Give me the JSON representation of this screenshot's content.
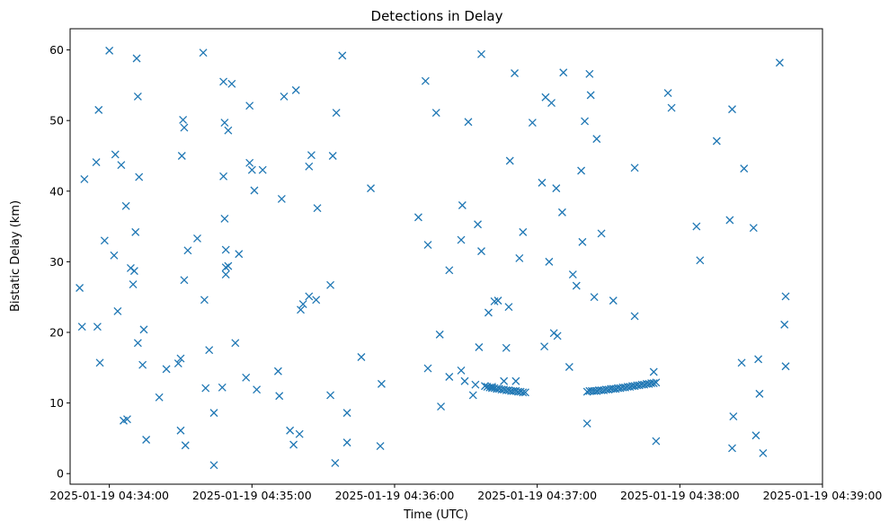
{
  "chart_data": {
    "type": "scatter",
    "title": "Detections in Delay",
    "xlabel": "Time (UTC)",
    "ylabel": "Bistatic Delay (km)",
    "marker": "x",
    "color": "#1f77b4",
    "x_unit": "seconds after 2025-01-19 04:34:00",
    "xlim": [
      -16.5,
      300
    ],
    "ylim": [
      -1.5,
      63
    ],
    "x_ticks": [
      {
        "value": 0,
        "label": "2025-01-19 04:34:00"
      },
      {
        "value": 60,
        "label": "2025-01-19 04:35:00"
      },
      {
        "value": 120,
        "label": "2025-01-19 04:36:00"
      },
      {
        "value": 180,
        "label": "2025-01-19 04:37:00"
      },
      {
        "value": 240,
        "label": "2025-01-19 04:38:00"
      },
      {
        "value": 300,
        "label": "2025-01-19 04:39:00"
      }
    ],
    "y_ticks": [
      {
        "value": 0,
        "label": "0"
      },
      {
        "value": 10,
        "label": "10"
      },
      {
        "value": 20,
        "label": "20"
      },
      {
        "value": 30,
        "label": "30"
      },
      {
        "value": 40,
        "label": "40"
      },
      {
        "value": 50,
        "label": "50"
      },
      {
        "value": 60,
        "label": "60"
      }
    ],
    "points": [
      [
        -12.5,
        26.3
      ],
      [
        -11.5,
        20.8
      ],
      [
        -10.5,
        41.7
      ],
      [
        -5.5,
        44.1
      ],
      [
        -5,
        20.8
      ],
      [
        -4.5,
        51.5
      ],
      [
        -4,
        15.7
      ],
      [
        -2,
        33
      ],
      [
        0,
        59.9
      ],
      [
        2,
        30.9
      ],
      [
        2.5,
        45.2
      ],
      [
        3.5,
        23
      ],
      [
        5,
        43.7
      ],
      [
        6,
        7.5
      ],
      [
        7,
        37.9
      ],
      [
        7.5,
        7.7
      ],
      [
        9,
        29.1
      ],
      [
        10,
        26.8
      ],
      [
        10.5,
        28.7
      ],
      [
        11,
        34.2
      ],
      [
        11.5,
        58.8
      ],
      [
        12,
        53.4
      ],
      [
        12,
        18.5
      ],
      [
        12.5,
        42
      ],
      [
        14,
        15.4
      ],
      [
        14.5,
        20.4
      ],
      [
        15.5,
        4.8
      ],
      [
        21,
        10.8
      ],
      [
        24,
        14.8
      ],
      [
        29,
        15.6
      ],
      [
        30,
        16.3
      ],
      [
        30,
        6.1
      ],
      [
        30.5,
        45
      ],
      [
        31,
        50.1
      ],
      [
        31.5,
        27.4
      ],
      [
        31.5,
        49
      ],
      [
        32,
        4
      ],
      [
        33,
        31.6
      ],
      [
        37,
        33.3
      ],
      [
        39.5,
        59.6
      ],
      [
        40,
        24.6
      ],
      [
        40.5,
        12.1
      ],
      [
        42,
        17.5
      ],
      [
        44,
        8.6
      ],
      [
        44,
        1.2
      ],
      [
        47.5,
        12.2
      ],
      [
        48,
        42.1
      ],
      [
        48,
        55.5
      ],
      [
        48.5,
        49.7
      ],
      [
        48.5,
        36.1
      ],
      [
        49,
        28.2
      ],
      [
        49,
        29.2
      ],
      [
        49,
        31.7
      ],
      [
        50,
        48.6
      ],
      [
        50,
        29.4
      ],
      [
        51.5,
        55.2
      ],
      [
        53,
        18.5
      ],
      [
        54.5,
        31.1
      ],
      [
        57.5,
        13.6
      ],
      [
        59,
        52.1
      ],
      [
        59,
        44
      ],
      [
        60,
        43
      ],
      [
        61,
        40.1
      ],
      [
        62,
        11.9
      ],
      [
        64.5,
        43
      ],
      [
        71,
        14.5
      ],
      [
        71.5,
        11
      ],
      [
        72.5,
        38.9
      ],
      [
        73.5,
        53.4
      ],
      [
        76,
        6.1
      ],
      [
        77.5,
        4.1
      ],
      [
        78.5,
        54.3
      ],
      [
        80,
        5.6
      ],
      [
        80.5,
        23.2
      ],
      [
        81.5,
        24
      ],
      [
        84,
        43.5
      ],
      [
        84,
        25.1
      ],
      [
        85,
        45.1
      ],
      [
        87,
        24.6
      ],
      [
        87.5,
        37.6
      ],
      [
        93,
        11.1
      ],
      [
        93,
        26.7
      ],
      [
        94,
        45
      ],
      [
        95,
        1.5
      ],
      [
        95.5,
        51.1
      ],
      [
        98,
        59.2
      ],
      [
        100,
        4.4
      ],
      [
        100,
        8.6
      ],
      [
        106,
        16.5
      ],
      [
        110,
        40.4
      ],
      [
        114,
        3.9
      ],
      [
        114.5,
        12.7
      ],
      [
        130,
        36.3
      ],
      [
        133,
        55.6
      ],
      [
        134,
        14.9
      ],
      [
        134,
        32.4
      ],
      [
        137.5,
        51.1
      ],
      [
        139,
        19.7
      ],
      [
        139.5,
        9.5
      ],
      [
        143,
        28.8
      ],
      [
        143,
        13.7
      ],
      [
        148,
        14.6
      ],
      [
        148,
        33.1
      ],
      [
        148.5,
        38
      ],
      [
        149.5,
        13.1
      ],
      [
        151,
        49.8
      ],
      [
        153,
        11.1
      ],
      [
        154,
        12.6
      ],
      [
        155,
        35.3
      ],
      [
        155.5,
        17.9
      ],
      [
        156.5,
        31.5
      ],
      [
        156.5,
        59.4
      ],
      [
        158,
        12.4
      ],
      [
        159.5,
        22.8
      ],
      [
        161,
        12.3
      ],
      [
        162,
        24.4
      ],
      [
        163.5,
        24.5
      ],
      [
        166,
        13.1
      ],
      [
        167,
        17.8
      ],
      [
        168,
        23.6
      ],
      [
        168.5,
        44.3
      ],
      [
        170.5,
        56.7
      ],
      [
        171,
        13.1
      ],
      [
        172.5,
        30.5
      ],
      [
        174,
        34.2
      ],
      [
        178,
        49.7
      ],
      [
        182,
        41.2
      ],
      [
        183,
        18
      ],
      [
        183.5,
        53.3
      ],
      [
        185,
        30
      ],
      [
        186,
        52.5
      ],
      [
        187,
        19.9
      ],
      [
        188,
        40.4
      ],
      [
        188.5,
        19.5
      ],
      [
        190.5,
        37
      ],
      [
        191,
        56.8
      ],
      [
        193.5,
        15.1
      ],
      [
        195,
        28.2
      ],
      [
        196.5,
        26.6
      ],
      [
        198.5,
        42.9
      ],
      [
        199,
        32.8
      ],
      [
        200,
        49.9
      ],
      [
        201,
        7.1
      ],
      [
        202,
        56.6
      ],
      [
        202.5,
        53.6
      ],
      [
        204,
        25
      ],
      [
        205,
        47.4
      ],
      [
        207,
        34
      ],
      [
        212,
        24.5
      ],
      [
        221,
        22.3
      ],
      [
        221,
        43.3
      ],
      [
        229,
        14.4
      ],
      [
        230,
        4.6
      ],
      [
        235,
        53.9
      ],
      [
        236.5,
        51.8
      ],
      [
        247,
        35
      ],
      [
        248.5,
        30.2
      ],
      [
        255.5,
        47.1
      ],
      [
        261,
        35.9
      ],
      [
        262,
        51.6
      ],
      [
        262,
        3.6
      ],
      [
        262.5,
        8.1
      ],
      [
        266,
        15.7
      ],
      [
        267,
        43.2
      ],
      [
        271,
        34.8
      ],
      [
        272,
        5.4
      ],
      [
        273,
        16.2
      ],
      [
        273.5,
        11.3
      ],
      [
        275,
        2.9
      ],
      [
        282,
        58.2
      ],
      [
        284,
        21.1
      ],
      [
        284.5,
        25.1
      ],
      [
        284.5,
        15.2
      ],
      [
        159,
        12.3
      ],
      [
        160,
        12.2
      ],
      [
        161,
        12.1
      ],
      [
        162,
        12.1
      ],
      [
        163,
        12
      ],
      [
        164,
        12
      ],
      [
        165,
        11.9
      ],
      [
        166,
        11.9
      ],
      [
        167,
        11.8
      ],
      [
        168,
        11.8
      ],
      [
        169,
        11.7
      ],
      [
        170,
        11.7
      ],
      [
        171,
        11.7
      ],
      [
        172,
        11.6
      ],
      [
        173,
        11.6
      ],
      [
        174,
        11.5
      ],
      [
        175,
        11.5
      ],
      [
        201,
        11.6
      ],
      [
        202,
        11.7
      ],
      [
        203,
        11.7
      ],
      [
        204,
        11.7
      ],
      [
        205,
        11.7
      ],
      [
        206,
        11.8
      ],
      [
        207,
        11.8
      ],
      [
        208,
        11.8
      ],
      [
        209,
        11.9
      ],
      [
        210,
        11.9
      ],
      [
        211,
        12
      ],
      [
        212,
        12
      ],
      [
        213,
        12
      ],
      [
        214,
        12.1
      ],
      [
        215,
        12.1
      ],
      [
        216,
        12.2
      ],
      [
        217,
        12.2
      ],
      [
        218,
        12.3
      ],
      [
        219,
        12.3
      ],
      [
        220,
        12.4
      ],
      [
        221,
        12.4
      ],
      [
        222,
        12.5
      ],
      [
        223,
        12.5
      ],
      [
        224,
        12.6
      ],
      [
        225,
        12.6
      ],
      [
        226,
        12.7
      ],
      [
        227,
        12.7
      ],
      [
        228,
        12.8
      ],
      [
        229,
        12.8
      ],
      [
        230,
        12.9
      ]
    ]
  }
}
